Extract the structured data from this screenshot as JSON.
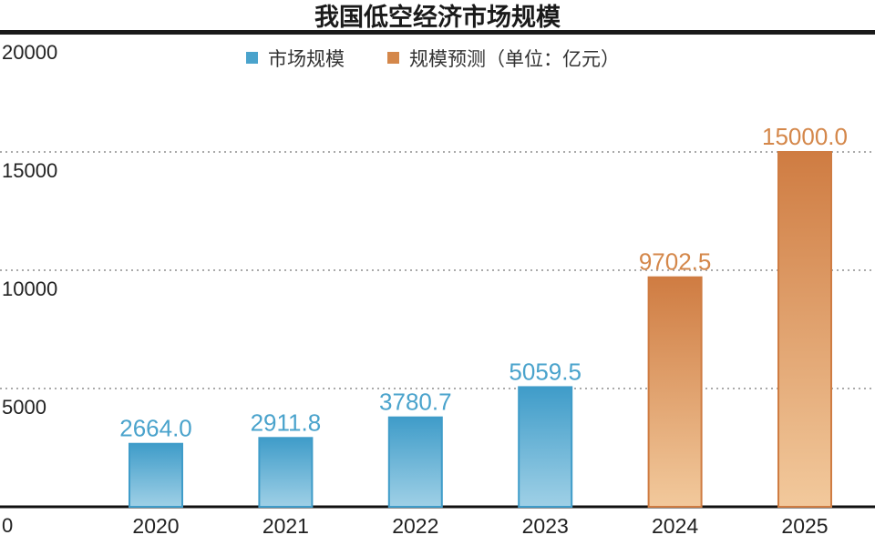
{
  "chart_data": {
    "type": "bar",
    "title": "我国低空经济市场规模",
    "categories": [
      "2020",
      "2021",
      "2022",
      "2023",
      "2024",
      "2025"
    ],
    "values": [
      2664.0,
      2911.8,
      3780.7,
      5059.5,
      9702.5,
      15000.0
    ],
    "value_labels": [
      "2664.0",
      "2911.8",
      "3780.7",
      "5059.5",
      "9702.5",
      "15000.0"
    ],
    "series_of_bar": [
      "actual",
      "actual",
      "actual",
      "actual",
      "forecast",
      "forecast"
    ],
    "legend": [
      {
        "key": "actual",
        "label": "市场规模",
        "color": "#4aa3cc"
      },
      {
        "key": "forecast",
        "label": "规模预测（单位：亿元）",
        "color": "#d4874a"
      }
    ],
    "legend_position": "top-center",
    "yticks": [
      0,
      5000,
      10000,
      15000,
      20000
    ],
    "ytick_labels": [
      "0",
      "5000",
      "10000",
      "15000",
      "20000"
    ],
    "ylim": [
      0,
      20000
    ],
    "grid": "horizontal dotted",
    "xlabel": "",
    "ylabel": ""
  }
}
